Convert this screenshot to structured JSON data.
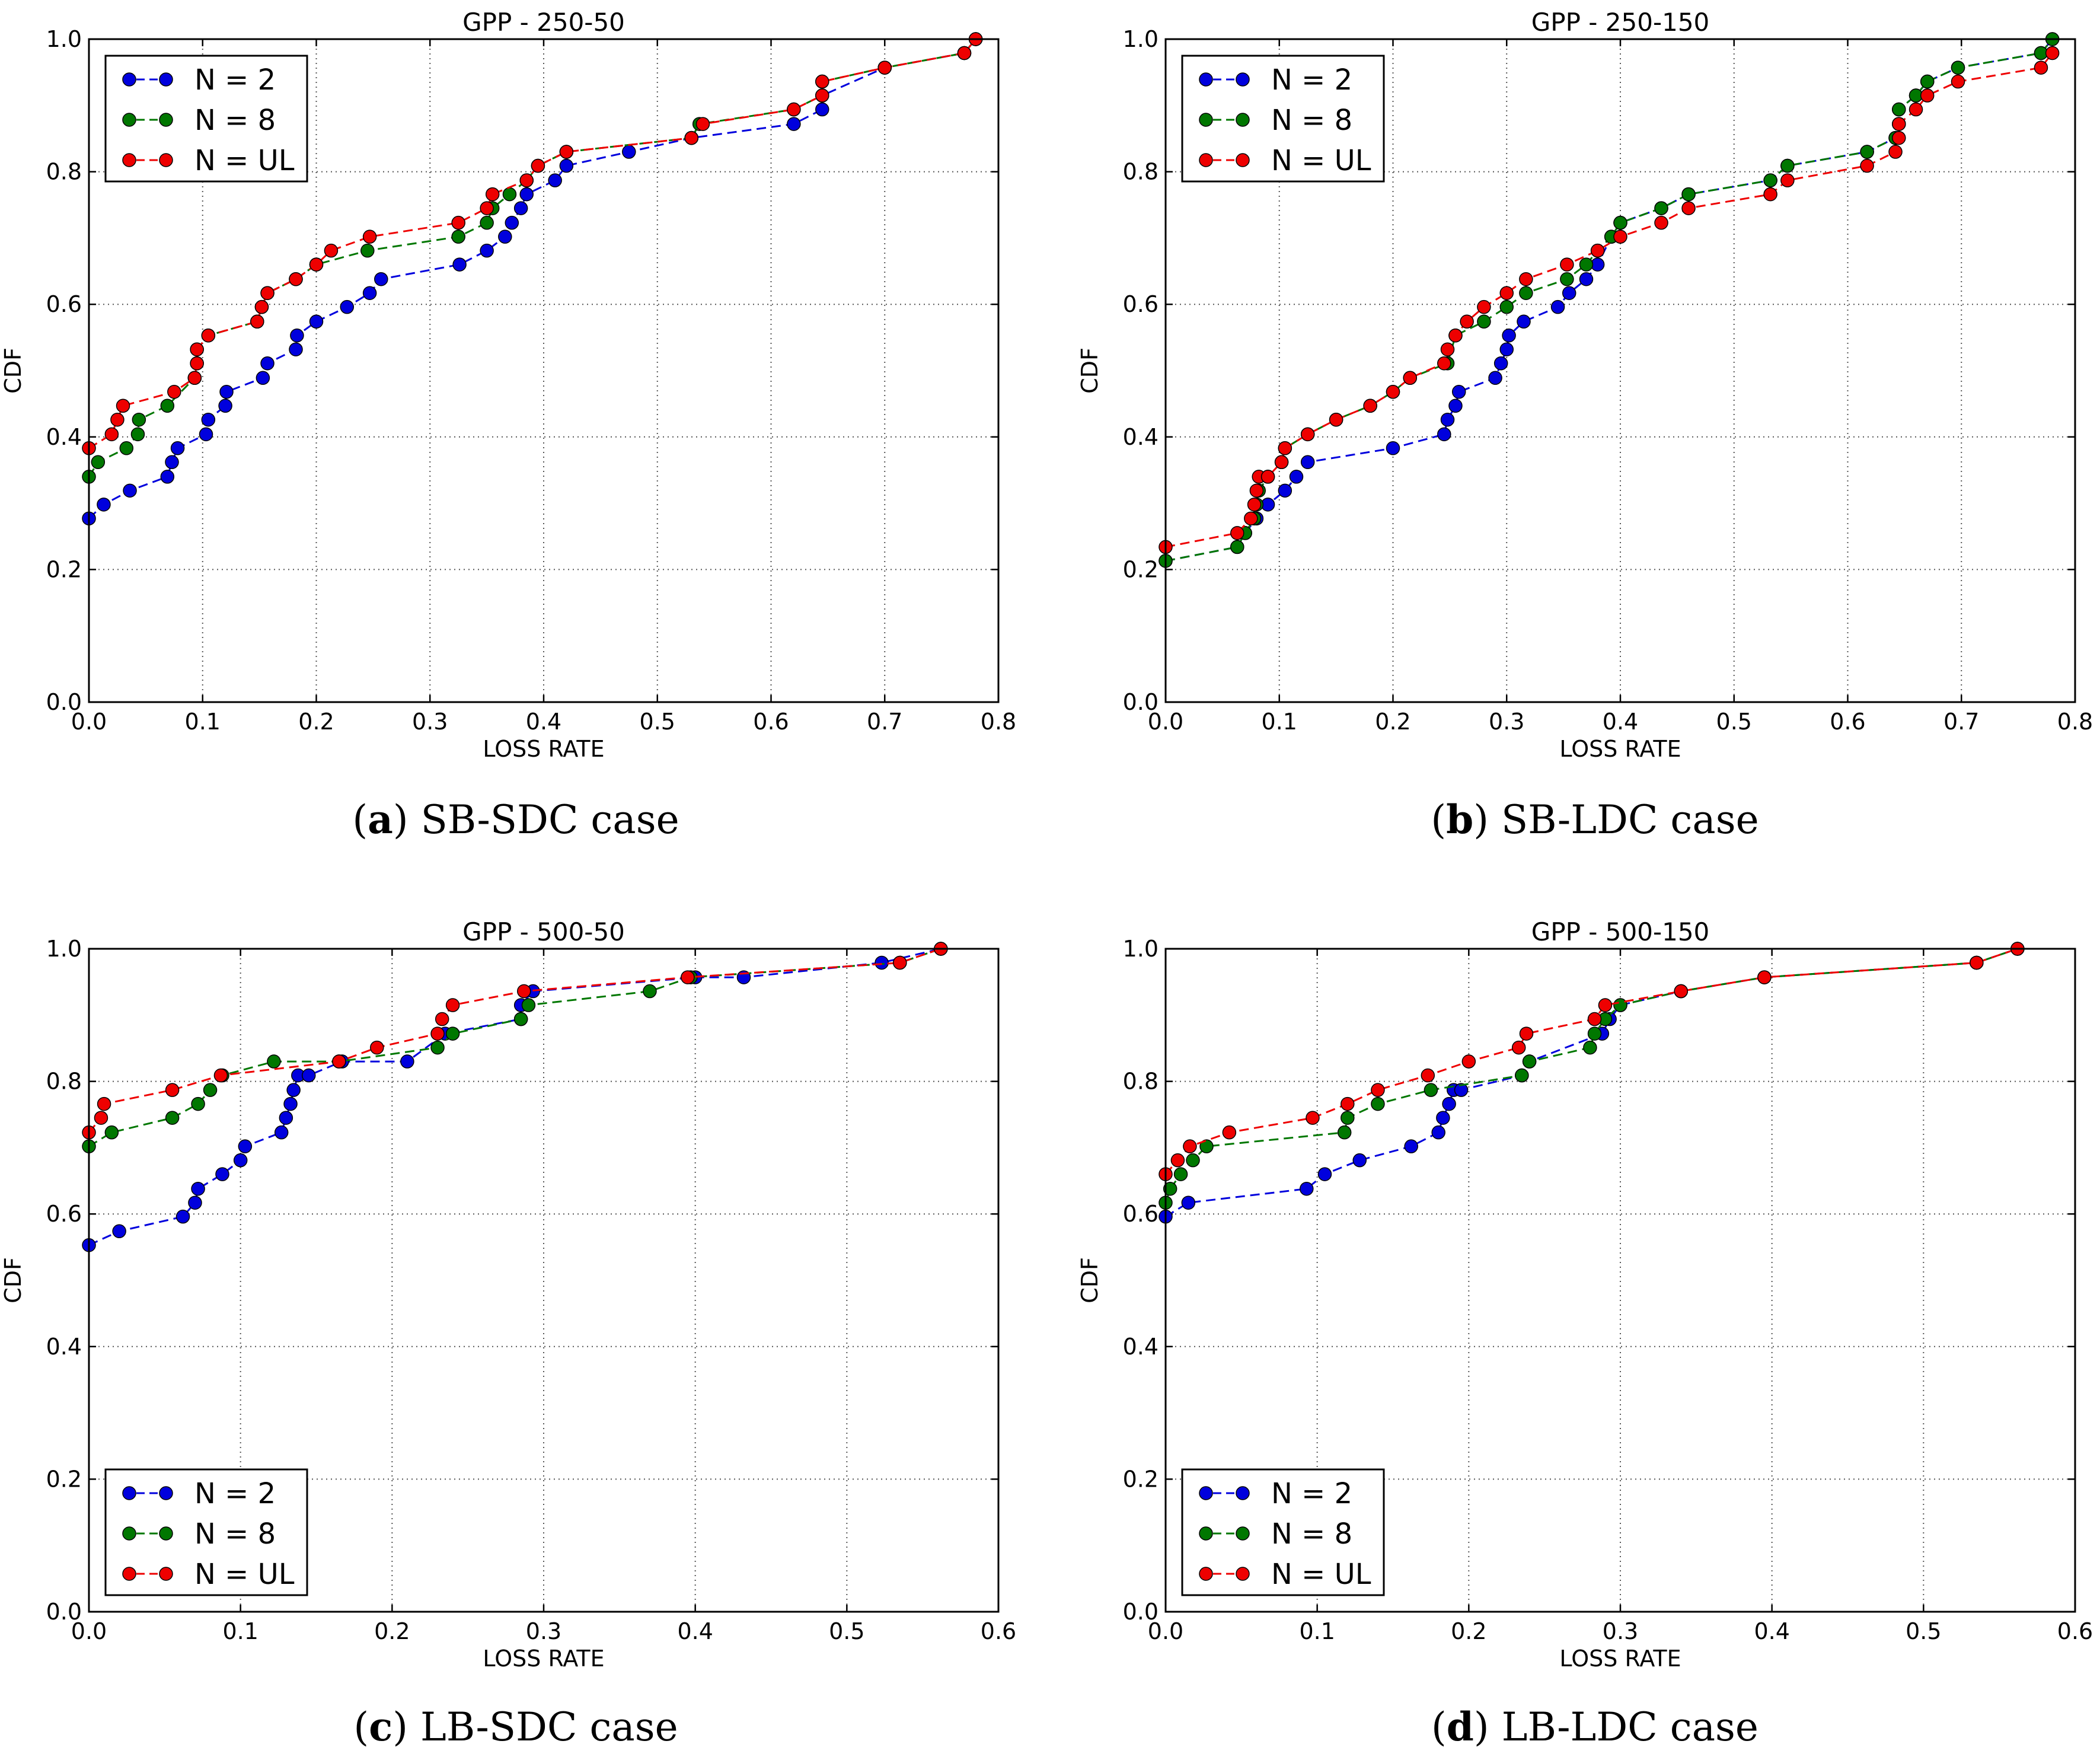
{
  "colors": {
    "N = 2": "#0000dd",
    "N = 8": "#007700",
    "N = UL": "#ee0000"
  },
  "captions": [
    {
      "letter": "a",
      "text": " SB-SDC case",
      "open": "(",
      "close": ")"
    },
    {
      "letter": "b",
      "text": " SB-LDC case",
      "open": "(",
      "close": ")"
    },
    {
      "letter": "c",
      "text": " LB-SDC case",
      "open": "(",
      "close": ")"
    },
    {
      "letter": "d",
      "text": " LB-LDC case",
      "open": "(",
      "close": ")"
    }
  ],
  "chart_data": [
    {
      "type": "line",
      "title": "GPP - 250-50",
      "xlabel": "LOSS RATE",
      "ylabel": "CDF",
      "xlim": [
        0,
        0.8
      ],
      "ylim": [
        0,
        1.0
      ],
      "xticks": [
        "0.0",
        "0.1",
        "0.2",
        "0.3",
        "0.4",
        "0.5",
        "0.6",
        "0.7",
        "0.8"
      ],
      "yticks": [
        "0.0",
        "0.2",
        "0.4",
        "0.6",
        "0.8",
        "1.0"
      ],
      "grid": true,
      "legend": "top-left",
      "series": [
        {
          "name": "N = 2",
          "x": [
            0.0,
            0.013,
            0.036,
            0.069,
            0.073,
            0.078,
            0.103,
            0.105,
            0.12,
            0.121,
            0.153,
            0.157,
            0.182,
            0.183,
            0.2,
            0.227,
            0.247,
            0.257,
            0.326,
            0.35,
            0.366,
            0.372,
            0.38,
            0.385,
            0.41,
            0.42,
            0.475,
            0.53,
            0.62,
            0.645,
            0.645,
            0.7,
            0.77,
            0.78
          ],
          "y": [
            0.277,
            0.298,
            0.319,
            0.34,
            0.362,
            0.383,
            0.404,
            0.426,
            0.447,
            0.468,
            0.489,
            0.511,
            0.532,
            0.553,
            0.574,
            0.596,
            0.617,
            0.638,
            0.66,
            0.681,
            0.702,
            0.723,
            0.745,
            0.766,
            0.787,
            0.809,
            0.83,
            0.851,
            0.872,
            0.894,
            0.915,
            0.957,
            0.979,
            1.0
          ]
        },
        {
          "name": "N = 8",
          "x": [
            0.0,
            0.008,
            0.033,
            0.043,
            0.044,
            0.069,
            0.093,
            0.095,
            0.095,
            0.105,
            0.148,
            0.152,
            0.157,
            0.182,
            0.2,
            0.245,
            0.325,
            0.35,
            0.355,
            0.37,
            0.385,
            0.395,
            0.42,
            0.53,
            0.537,
            0.62,
            0.645,
            0.645,
            0.7,
            0.77,
            0.78
          ],
          "y": [
            0.34,
            0.362,
            0.383,
            0.404,
            0.426,
            0.447,
            0.489,
            0.511,
            0.532,
            0.553,
            0.574,
            0.596,
            0.617,
            0.638,
            0.66,
            0.681,
            0.702,
            0.723,
            0.745,
            0.766,
            0.787,
            0.809,
            0.83,
            0.851,
            0.872,
            0.894,
            0.915,
            0.936,
            0.957,
            0.979,
            1.0
          ]
        },
        {
          "name": "N = UL",
          "x": [
            0.0,
            0.02,
            0.025,
            0.03,
            0.075,
            0.093,
            0.095,
            0.095,
            0.105,
            0.148,
            0.152,
            0.157,
            0.182,
            0.2,
            0.213,
            0.247,
            0.325,
            0.35,
            0.355,
            0.385,
            0.395,
            0.42,
            0.53,
            0.54,
            0.62,
            0.645,
            0.645,
            0.7,
            0.77,
            0.78
          ],
          "y": [
            0.383,
            0.404,
            0.426,
            0.447,
            0.468,
            0.489,
            0.511,
            0.532,
            0.553,
            0.574,
            0.596,
            0.617,
            0.638,
            0.66,
            0.681,
            0.702,
            0.723,
            0.745,
            0.766,
            0.787,
            0.809,
            0.83,
            0.851,
            0.872,
            0.894,
            0.915,
            0.936,
            0.957,
            0.979,
            1.0
          ]
        }
      ]
    },
    {
      "type": "line",
      "title": "GPP - 250-150",
      "xlabel": "LOSS RATE",
      "ylabel": "CDF",
      "xlim": [
        0,
        0.8
      ],
      "ylim": [
        0,
        1.0
      ],
      "xticks": [
        "0.0",
        "0.1",
        "0.2",
        "0.3",
        "0.4",
        "0.5",
        "0.6",
        "0.7",
        "0.8"
      ],
      "yticks": [
        "0.0",
        "0.2",
        "0.4",
        "0.6",
        "0.8",
        "1.0"
      ],
      "grid": true,
      "legend": "top-left",
      "series": [
        {
          "name": "N = 2",
          "x": [
            0.0,
            0.063,
            0.07,
            0.08,
            0.09,
            0.105,
            0.115,
            0.125,
            0.2,
            0.245,
            0.248,
            0.255,
            0.258,
            0.29,
            0.295,
            0.3,
            0.302,
            0.315,
            0.345,
            0.355,
            0.37,
            0.38,
            0.392,
            0.4,
            0.436,
            0.46,
            0.532,
            0.547,
            0.617,
            0.642,
            0.645,
            0.645,
            0.66,
            0.67,
            0.697,
            0.77,
            0.78
          ],
          "y": [
            0.213,
            0.234,
            0.255,
            0.277,
            0.298,
            0.319,
            0.34,
            0.362,
            0.383,
            0.404,
            0.426,
            0.447,
            0.468,
            0.489,
            0.511,
            0.532,
            0.553,
            0.574,
            0.596,
            0.617,
            0.638,
            0.66,
            0.702,
            0.723,
            0.745,
            0.766,
            0.787,
            0.809,
            0.83,
            0.851,
            0.872,
            0.894,
            0.915,
            0.936,
            0.957,
            0.979,
            1.0
          ]
        },
        {
          "name": "N = 8",
          "x": [
            0.0,
            0.063,
            0.07,
            0.078,
            0.08,
            0.082,
            0.09,
            0.102,
            0.105,
            0.125,
            0.15,
            0.18,
            0.2,
            0.215,
            0.248,
            0.255,
            0.28,
            0.3,
            0.317,
            0.353,
            0.37,
            0.38,
            0.392,
            0.4,
            0.436,
            0.46,
            0.532,
            0.547,
            0.617,
            0.642,
            0.645,
            0.645,
            0.66,
            0.67,
            0.697,
            0.77,
            0.78
          ],
          "y": [
            0.213,
            0.234,
            0.255,
            0.277,
            0.298,
            0.319,
            0.34,
            0.362,
            0.383,
            0.404,
            0.426,
            0.447,
            0.468,
            0.489,
            0.511,
            0.553,
            0.574,
            0.596,
            0.617,
            0.638,
            0.66,
            0.681,
            0.702,
            0.723,
            0.745,
            0.766,
            0.787,
            0.809,
            0.83,
            0.851,
            0.872,
            0.894,
            0.915,
            0.936,
            0.957,
            0.979,
            1.0
          ]
        },
        {
          "name": "N = UL",
          "x": [
            0.0,
            0.063,
            0.075,
            0.078,
            0.08,
            0.082,
            0.09,
            0.102,
            0.105,
            0.125,
            0.15,
            0.18,
            0.2,
            0.215,
            0.245,
            0.248,
            0.255,
            0.265,
            0.28,
            0.3,
            0.317,
            0.353,
            0.38,
            0.4,
            0.436,
            0.46,
            0.532,
            0.547,
            0.617,
            0.642,
            0.645,
            0.645,
            0.66,
            0.67,
            0.697,
            0.77,
            0.78
          ],
          "y": [
            0.234,
            0.255,
            0.277,
            0.298,
            0.319,
            0.34,
            0.34,
            0.362,
            0.383,
            0.404,
            0.426,
            0.447,
            0.468,
            0.489,
            0.511,
            0.532,
            0.553,
            0.574,
            0.596,
            0.617,
            0.638,
            0.66,
            0.681,
            0.702,
            0.723,
            0.745,
            0.766,
            0.787,
            0.809,
            0.83,
            0.851,
            0.872,
            0.894,
            0.915,
            0.936,
            0.957,
            0.979
          ]
        }
      ]
    },
    {
      "type": "line",
      "title": "GPP - 500-50",
      "xlabel": "LOSS RATE",
      "ylabel": "CDF",
      "xlim": [
        0,
        0.6
      ],
      "ylim": [
        0,
        1.0
      ],
      "xticks": [
        "0.0",
        "0.1",
        "0.2",
        "0.3",
        "0.4",
        "0.5",
        "0.6"
      ],
      "yticks": [
        "0.0",
        "0.2",
        "0.4",
        "0.6",
        "0.8",
        "1.0"
      ],
      "grid": true,
      "legend": "bottom-left",
      "series": [
        {
          "name": "N = 2",
          "x": [
            0.0,
            0.02,
            0.062,
            0.07,
            0.072,
            0.088,
            0.1,
            0.103,
            0.127,
            0.13,
            0.133,
            0.135,
            0.138,
            0.145,
            0.167,
            0.21,
            0.235,
            0.285,
            0.285,
            0.293,
            0.4,
            0.432,
            0.523,
            0.562
          ],
          "y": [
            0.553,
            0.574,
            0.596,
            0.617,
            0.638,
            0.66,
            0.681,
            0.702,
            0.723,
            0.745,
            0.766,
            0.787,
            0.809,
            0.809,
            0.83,
            0.83,
            0.872,
            0.894,
            0.915,
            0.936,
            0.957,
            0.957,
            0.979,
            1.0
          ]
        },
        {
          "name": "N = 8",
          "x": [
            0.0,
            0.015,
            0.055,
            0.072,
            0.08,
            0.088,
            0.122,
            0.165,
            0.23,
            0.24,
            0.285,
            0.29,
            0.37,
            0.397,
            0.535,
            0.562
          ],
          "y": [
            0.702,
            0.723,
            0.745,
            0.766,
            0.787,
            0.809,
            0.83,
            0.83,
            0.851,
            0.872,
            0.894,
            0.915,
            0.936,
            0.957,
            0.979,
            1.0
          ]
        },
        {
          "name": "N = UL",
          "x": [
            0.0,
            0.008,
            0.01,
            0.055,
            0.087,
            0.165,
            0.19,
            0.23,
            0.233,
            0.24,
            0.287,
            0.395,
            0.535,
            0.562
          ],
          "y": [
            0.723,
            0.745,
            0.766,
            0.787,
            0.809,
            0.83,
            0.851,
            0.872,
            0.894,
            0.915,
            0.936,
            0.957,
            0.979,
            1.0
          ]
        }
      ]
    },
    {
      "type": "line",
      "title": "GPP - 500-150",
      "xlabel": "LOSS RATE",
      "ylabel": "CDF",
      "xlim": [
        0,
        0.6
      ],
      "ylim": [
        0,
        1.0
      ],
      "xticks": [
        "0.0",
        "0.1",
        "0.2",
        "0.3",
        "0.4",
        "0.5",
        "0.6"
      ],
      "yticks": [
        "0.0",
        "0.2",
        "0.4",
        "0.6",
        "0.8",
        "1.0"
      ],
      "grid": true,
      "legend": "bottom-left",
      "series": [
        {
          "name": "N = 2",
          "x": [
            0.0,
            0.015,
            0.093,
            0.105,
            0.128,
            0.162,
            0.18,
            0.183,
            0.187,
            0.19,
            0.195,
            0.235,
            0.24,
            0.288,
            0.293,
            0.3,
            0.34,
            0.395,
            0.535,
            0.562
          ],
          "y": [
            0.596,
            0.617,
            0.638,
            0.66,
            0.681,
            0.702,
            0.723,
            0.745,
            0.766,
            0.787,
            0.787,
            0.809,
            0.83,
            0.872,
            0.894,
            0.915,
            0.936,
            0.957,
            0.979,
            1.0
          ]
        },
        {
          "name": "N = 8",
          "x": [
            0.0,
            0.003,
            0.01,
            0.018,
            0.027,
            0.118,
            0.12,
            0.14,
            0.175,
            0.235,
            0.24,
            0.28,
            0.283,
            0.29,
            0.3,
            0.34,
            0.395,
            0.535,
            0.562
          ],
          "y": [
            0.617,
            0.638,
            0.66,
            0.681,
            0.702,
            0.723,
            0.745,
            0.766,
            0.787,
            0.809,
            0.83,
            0.851,
            0.872,
            0.894,
            0.915,
            0.936,
            0.957,
            0.979,
            1.0
          ]
        },
        {
          "name": "N = UL",
          "x": [
            0.0,
            0.008,
            0.016,
            0.042,
            0.097,
            0.12,
            0.14,
            0.173,
            0.2,
            0.233,
            0.238,
            0.283,
            0.29,
            0.34,
            0.395,
            0.535,
            0.562
          ],
          "y": [
            0.66,
            0.681,
            0.702,
            0.723,
            0.745,
            0.766,
            0.787,
            0.809,
            0.83,
            0.851,
            0.872,
            0.894,
            0.915,
            0.936,
            0.957,
            0.979,
            1.0
          ]
        }
      ]
    }
  ]
}
